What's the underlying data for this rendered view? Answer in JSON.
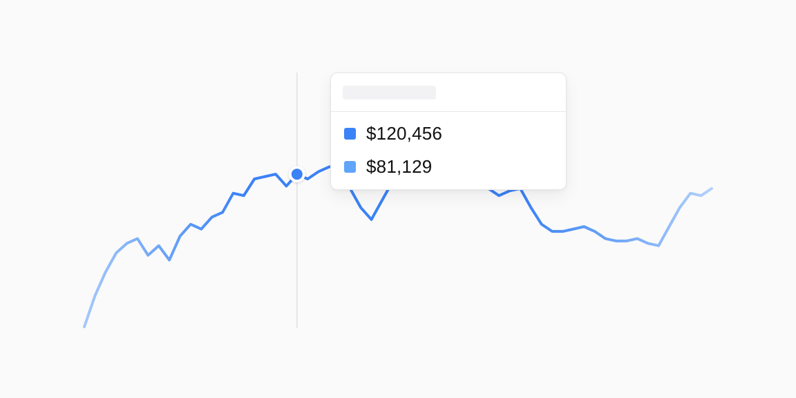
{
  "colors": {
    "background": "#fafafa",
    "series_primary": "#3b82f6",
    "series_secondary": "#60a5fa",
    "cursor_line": "#e5e5e5"
  },
  "chart_data": {
    "type": "line",
    "title": "",
    "xlabel": "",
    "ylabel": "",
    "grid": false,
    "legend": "none",
    "y_direction": "higher value = higher on chart",
    "series": [
      {
        "color": "#3b82f6",
        "x": [
          0,
          1,
          2,
          3,
          4,
          5,
          6,
          7,
          8,
          9,
          10,
          11,
          12,
          13,
          14,
          15,
          16,
          17,
          18,
          19,
          20,
          21,
          22,
          23,
          24,
          25,
          26,
          27,
          28,
          29,
          30,
          31,
          32,
          33,
          34,
          35,
          36,
          37,
          38,
          39,
          40,
          41,
          42,
          43,
          44,
          45,
          46,
          47,
          48,
          49,
          50,
          51,
          52,
          53,
          54,
          55,
          56,
          57,
          58,
          59
        ],
        "values": [
          0,
          13,
          23,
          31,
          35,
          37,
          30,
          34,
          28,
          38,
          43,
          41,
          46,
          48,
          56,
          55,
          62,
          63,
          64,
          59,
          64,
          62,
          65,
          67,
          68,
          58,
          50,
          45,
          53,
          61,
          70,
          73,
          71,
          69,
          66,
          62,
          62,
          60,
          58,
          55,
          57,
          58,
          50,
          43,
          40,
          40,
          41,
          42,
          40,
          37,
          36,
          36,
          37,
          35,
          34,
          42,
          50,
          56,
          55,
          58
        ]
      }
    ],
    "cursor": {
      "x_index": 20,
      "tooltip_values": [
        "$120,456",
        "$81,129"
      ]
    }
  },
  "tooltip": {
    "rows": [
      {
        "value": "$120,456",
        "color": "#3b82f6"
      },
      {
        "value": "$81,129",
        "color": "#60a5fa"
      }
    ]
  }
}
